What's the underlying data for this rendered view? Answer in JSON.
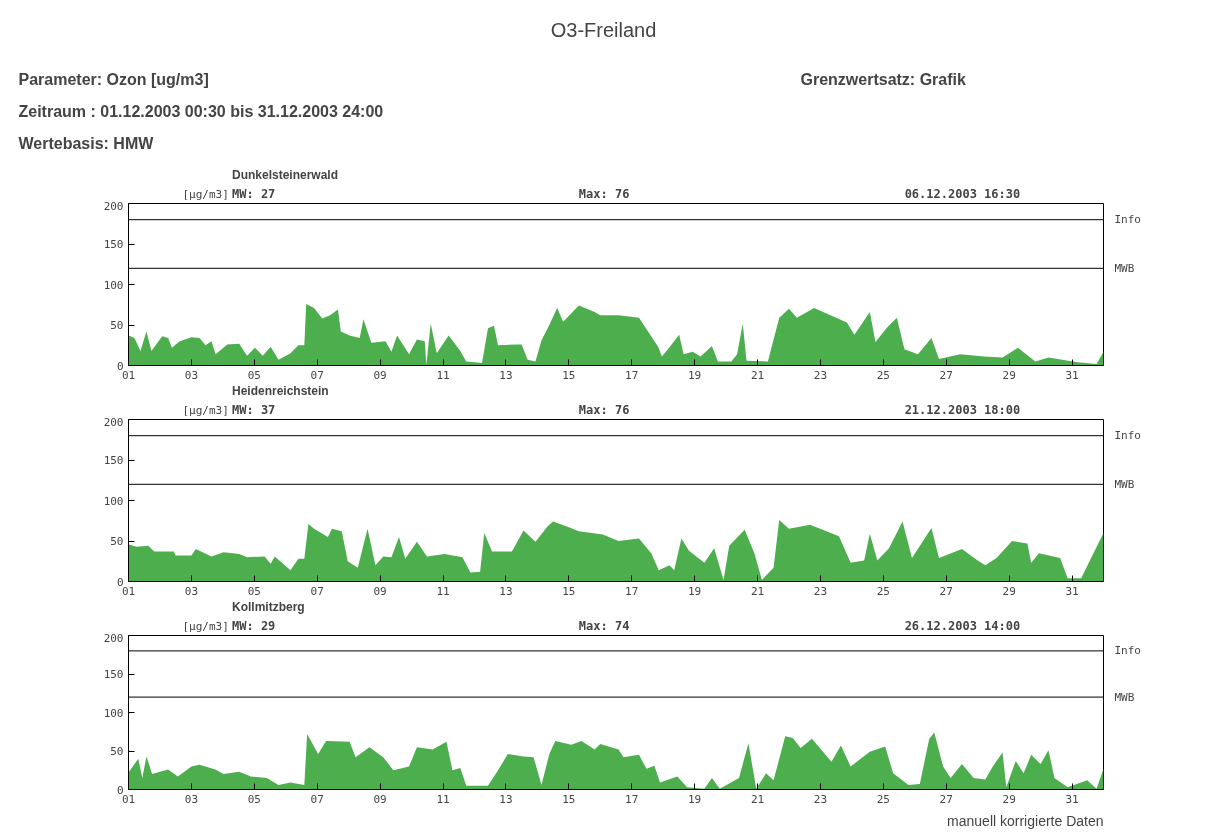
{
  "chart_data": [
    {
      "type": "other",
      "title": "O3-Freiland",
      "annotations": [
        "Parameter: Ozon [ug/m3]",
        "Zeitraum  : 01.12.2003 00:30 bis 31.12.2003 24:00",
        "Wertebasis: HMW",
        "Grenzwertsatz: Grafik"
      ]
    },
    {
      "type": "area",
      "subtitle": "Dunkelsteinerwald",
      "ylabel": "[µg/m3]",
      "annotations": [
        "MW: 27",
        "Max: 76",
        "06.12.2003 16:30"
      ],
      "x": [
        1.0,
        1.19,
        1.38,
        1.57,
        1.73,
        2.07,
        2.26,
        2.38,
        2.63,
        3.0,
        3.26,
        3.45,
        3.64,
        3.77,
        4.14,
        4.52,
        4.77,
        5.02,
        5.27,
        5.52,
        5.77,
        6.15,
        6.4,
        6.59,
        6.65,
        6.9,
        7.16,
        7.41,
        7.66,
        7.75,
        8.03,
        8.35,
        8.47,
        8.72,
        9.17,
        9.36,
        9.54,
        9.92,
        10.17,
        10.42,
        10.47,
        10.61,
        10.8,
        11.18,
        11.55,
        11.74,
        12.24,
        12.43,
        12.62,
        12.75,
        13.31,
        13.5,
        13.69,
        13.94,
        14.13,
        14.38,
        14.63,
        14.82,
        15.32,
        15.82,
        16.0,
        16.58,
        17.23,
        17.84,
        17.96,
        18.15,
        18.51,
        18.65,
        18.94,
        19.19,
        19.55,
        19.74,
        20.17,
        20.35,
        20.53,
        20.65,
        21.33,
        21.69,
        22.0,
        22.25,
        22.8,
        23.84,
        24.08,
        24.57,
        24.75,
        25.12,
        25.43,
        25.67,
        26.1,
        26.53,
        26.77,
        27.44,
        28.2,
        28.79,
        29.28,
        29.83,
        30.25,
        31.17,
        31.78,
        32.0
      ],
      "series": [
        {
          "color": "#4cae4c",
          "values": [
            37,
            34,
            18,
            42,
            18,
            36,
            34,
            22,
            30,
            35,
            34,
            25,
            30,
            14,
            26,
            27,
            12,
            22,
            12,
            23,
            7,
            15,
            25,
            25,
            76,
            71,
            58,
            62,
            69,
            42,
            37,
            34,
            57,
            28,
            30,
            17,
            37,
            14,
            32,
            30,
            1,
            52,
            15,
            37,
            18,
            5,
            3,
            46,
            49,
            25,
            26,
            26,
            7,
            5,
            31,
            50,
            71,
            54,
            74,
            66,
            62,
            62,
            59,
            23,
            11,
            20,
            38,
            14,
            17,
            11,
            24,
            5,
            5,
            14,
            52,
            6,
            5,
            59,
            70,
            59,
            71,
            53,
            38,
            66,
            29,
            47,
            59,
            20,
            14,
            34,
            8,
            14,
            11,
            10,
            22,
            5,
            10,
            4,
            2,
            17
          ]
        }
      ],
      "xlim": [
        1,
        32
      ],
      "ylim": [
        0,
        200
      ],
      "yticks": [
        0,
        50,
        100,
        150,
        200
      ],
      "xticks": [
        {
          "value": 1,
          "label": "01"
        },
        {
          "value": 3,
          "label": "03"
        },
        {
          "value": 5,
          "label": "05"
        },
        {
          "value": 7,
          "label": "07"
        },
        {
          "value": 9,
          "label": "09"
        },
        {
          "value": 11,
          "label": "11"
        },
        {
          "value": 13,
          "label": "13"
        },
        {
          "value": 15,
          "label": "15"
        },
        {
          "value": 17,
          "label": "17"
        },
        {
          "value": 19,
          "label": "19"
        },
        {
          "value": 21,
          "label": "21"
        },
        {
          "value": 23,
          "label": "23"
        },
        {
          "value": 25,
          "label": "25"
        },
        {
          "value": 27,
          "label": "27"
        },
        {
          "value": 29,
          "label": "29"
        },
        {
          "value": 31,
          "label": "31"
        }
      ],
      "ref_lines": [
        {
          "axis": "y",
          "value": 180,
          "label": "Info",
          "color": "#000000"
        },
        {
          "axis": "y",
          "value": 120,
          "label": "MWB",
          "color": "#000000"
        }
      ]
    },
    {
      "type": "area",
      "subtitle": "Heidenreichstein",
      "ylabel": "[µg/m3]",
      "annotations": [
        "MW: 37",
        "Max: 76",
        "21.12.2003 18:00"
      ],
      "x": [
        1.0,
        1.25,
        1.63,
        1.82,
        2.44,
        2.5,
        3.0,
        3.14,
        3.64,
        4.02,
        4.52,
        4.77,
        5.33,
        5.52,
        5.65,
        6.15,
        6.4,
        6.59,
        6.72,
        6.9,
        7.34,
        7.47,
        7.78,
        7.97,
        8.29,
        8.6,
        8.85,
        9.1,
        9.36,
        9.6,
        9.8,
        10.17,
        10.49,
        11.05,
        11.62,
        11.87,
        12.18,
        12.31,
        12.56,
        13.19,
        13.56,
        13.94,
        14.32,
        14.5,
        14.94,
        15.32,
        16.08,
        16.58,
        17.23,
        17.62,
        17.86,
        18.2,
        18.35,
        18.58,
        18.82,
        19.31,
        19.62,
        19.92,
        20.1,
        20.59,
        20.9,
        21.14,
        21.51,
        21.69,
        22.0,
        22.67,
        23.59,
        23.96,
        24.39,
        24.57,
        24.81,
        25.18,
        25.61,
        25.91,
        26.53,
        26.77,
        27.5,
        28.0,
        28.24,
        28.6,
        29.09,
        29.58,
        29.7,
        29.95,
        30.62,
        30.86,
        31.29,
        31.72,
        32.0
      ],
      "series": [
        {
          "color": "#4cae4c",
          "values": [
            46,
            43,
            44,
            37,
            37,
            32,
            32,
            40,
            31,
            36,
            34,
            30,
            31,
            22,
            31,
            14,
            28,
            28,
            71,
            65,
            55,
            65,
            62,
            25,
            17,
            65,
            20,
            31,
            30,
            55,
            28,
            49,
            31,
            34,
            30,
            11,
            12,
            60,
            37,
            37,
            63,
            49,
            68,
            74,
            68,
            62,
            58,
            50,
            53,
            35,
            14,
            20,
            14,
            53,
            38,
            23,
            41,
            2,
            44,
            64,
            35,
            2,
            17,
            76,
            65,
            70,
            56,
            23,
            26,
            59,
            26,
            41,
            74,
            29,
            66,
            29,
            40,
            26,
            20,
            29,
            50,
            47,
            23,
            35,
            29,
            4,
            4,
            38,
            60
          ]
        }
      ],
      "xlim": [
        1,
        32
      ],
      "ylim": [
        0,
        200
      ],
      "yticks": [
        0,
        50,
        100,
        150,
        200
      ],
      "xticks": [
        {
          "value": 1,
          "label": "01"
        },
        {
          "value": 3,
          "label": "03"
        },
        {
          "value": 5,
          "label": "05"
        },
        {
          "value": 7,
          "label": "07"
        },
        {
          "value": 9,
          "label": "09"
        },
        {
          "value": 11,
          "label": "11"
        },
        {
          "value": 13,
          "label": "13"
        },
        {
          "value": 15,
          "label": "15"
        },
        {
          "value": 17,
          "label": "17"
        },
        {
          "value": 19,
          "label": "19"
        },
        {
          "value": 21,
          "label": "21"
        },
        {
          "value": 23,
          "label": "23"
        },
        {
          "value": 25,
          "label": "25"
        },
        {
          "value": 27,
          "label": "27"
        },
        {
          "value": 29,
          "label": "29"
        },
        {
          "value": 31,
          "label": "31"
        }
      ],
      "ref_lines": [
        {
          "axis": "y",
          "value": 180,
          "label": "Info",
          "color": "#000000"
        },
        {
          "axis": "y",
          "value": 120,
          "label": "MWB",
          "color": "#000000"
        }
      ]
    },
    {
      "type": "area",
      "subtitle": "Kollmitzberg",
      "ylabel": "[µg/m3]",
      "annotations": [
        "MW: 29",
        "Max: 74",
        "26.12.2003 14:00",
        "manuell korrigierte Daten"
      ],
      "x": [
        1.0,
        1.31,
        1.44,
        1.57,
        1.75,
        2.26,
        2.57,
        3.0,
        3.26,
        3.76,
        4.02,
        4.52,
        4.89,
        5.4,
        5.77,
        6.15,
        6.59,
        6.68,
        7.03,
        7.28,
        8.03,
        8.22,
        8.66,
        9.1,
        9.42,
        9.92,
        10.17,
        10.67,
        11.11,
        11.3,
        11.55,
        11.74,
        12.43,
        12.75,
        13.06,
        13.56,
        13.88,
        14.13,
        14.38,
        14.57,
        15.08,
        15.4,
        15.82,
        16.0,
        16.58,
        16.74,
        17.23,
        17.47,
        17.72,
        17.9,
        18.45,
        18.76,
        19.31,
        19.55,
        19.8,
        20.41,
        20.71,
        20.96,
        21.27,
        21.51,
        21.88,
        22.12,
        22.37,
        22.73,
        23.35,
        23.65,
        23.96,
        24.57,
        25.06,
        25.31,
        25.8,
        26.16,
        26.46,
        26.62,
        26.9,
        27.14,
        27.5,
        27.87,
        28.24,
        28.48,
        28.79,
        28.91,
        29.21,
        29.46,
        29.7,
        30.0,
        30.25,
        30.44,
        30.86,
        31.48,
        31.78,
        32.0
      ],
      "series": [
        {
          "color": "#4cae4c",
          "values": [
            22,
            40,
            15,
            43,
            20,
            26,
            17,
            30,
            32,
            26,
            20,
            23,
            17,
            15,
            6,
            9,
            6,
            72,
            46,
            63,
            62,
            42,
            55,
            42,
            25,
            30,
            55,
            52,
            62,
            25,
            28,
            5,
            5,
            25,
            46,
            43,
            42,
            6,
            46,
            63,
            58,
            63,
            52,
            59,
            52,
            42,
            45,
            27,
            31,
            9,
            17,
            3,
            1,
            15,
            1,
            15,
            60,
            1,
            21,
            12,
            69,
            67,
            54,
            66,
            36,
            57,
            30,
            49,
            56,
            21,
            6,
            7,
            66,
            74,
            30,
            15,
            33,
            15,
            13,
            30,
            48,
            3,
            37,
            21,
            45,
            33,
            51,
            15,
            3,
            12,
            1,
            27
          ]
        }
      ],
      "xlim": [
        1,
        32
      ],
      "ylim": [
        0,
        200
      ],
      "yticks": [
        0,
        50,
        100,
        150,
        200
      ],
      "xticks": [
        {
          "value": 1,
          "label": "01"
        },
        {
          "value": 3,
          "label": "03"
        },
        {
          "value": 5,
          "label": "05"
        },
        {
          "value": 7,
          "label": "07"
        },
        {
          "value": 9,
          "label": "09"
        },
        {
          "value": 11,
          "label": "11"
        },
        {
          "value": 13,
          "label": "13"
        },
        {
          "value": 15,
          "label": "15"
        },
        {
          "value": 17,
          "label": "17"
        },
        {
          "value": 19,
          "label": "19"
        },
        {
          "value": 21,
          "label": "21"
        },
        {
          "value": 23,
          "label": "23"
        },
        {
          "value": 25,
          "label": "25"
        },
        {
          "value": 27,
          "label": "27"
        },
        {
          "value": 29,
          "label": "29"
        },
        {
          "value": 31,
          "label": "31"
        }
      ],
      "ref_lines": [
        {
          "axis": "y",
          "value": 180,
          "label": "Info",
          "color": "#000000"
        },
        {
          "axis": "y",
          "value": 120,
          "label": "MWB",
          "color": "#000000"
        }
      ]
    }
  ]
}
